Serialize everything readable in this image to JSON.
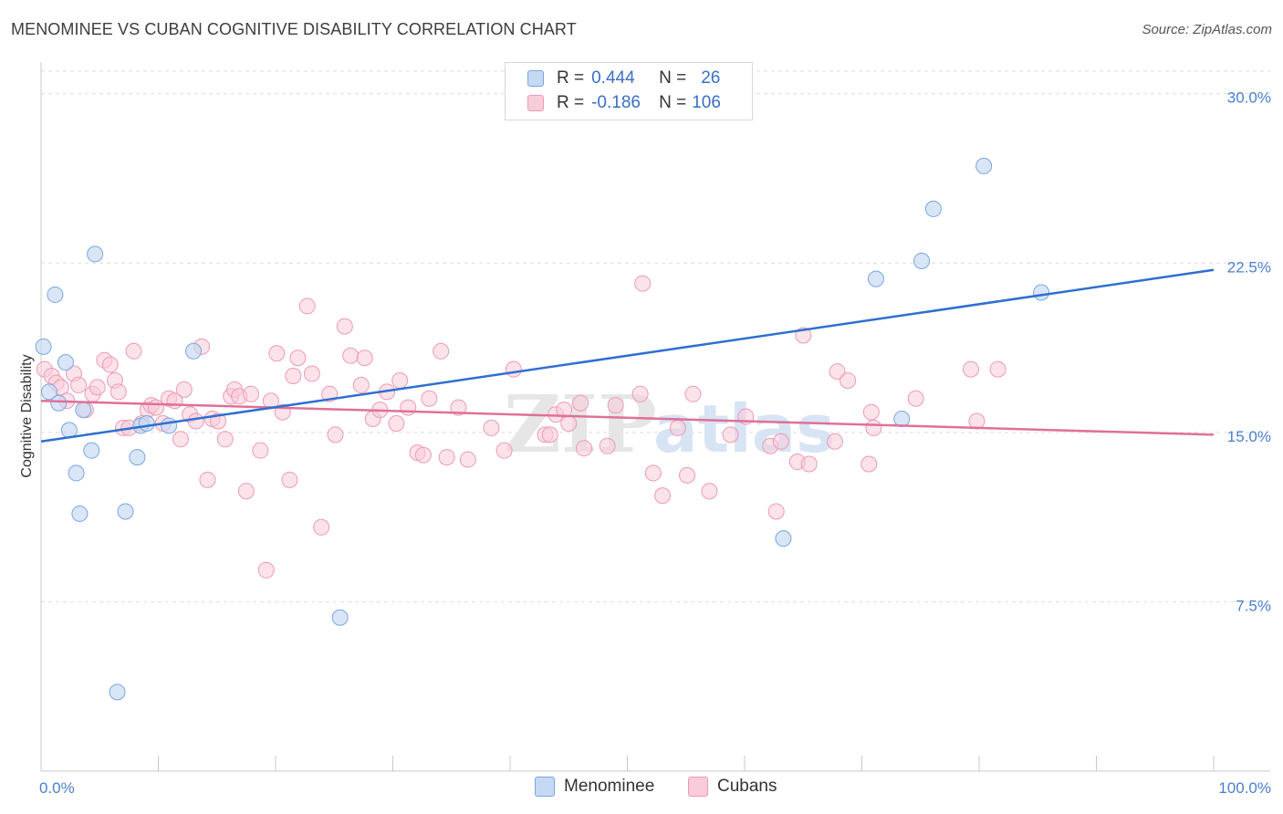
{
  "header": {
    "title": "MENOMINEE VS CUBAN COGNITIVE DISABILITY CORRELATION CHART",
    "source": "Source: ZipAtlas.com"
  },
  "legend_top": {
    "rows": [
      {
        "r_label": "R =",
        "r_value": "0.444",
        "n_label": "N =",
        "n_value": "26"
      },
      {
        "r_label": "R =",
        "r_value": "-0.186",
        "n_label": "N =",
        "n_value": "106"
      }
    ]
  },
  "legend_bottom": {
    "items": [
      "Menominee",
      "Cubans"
    ]
  },
  "watermark": {
    "zip": "ZIP",
    "atlas": "atlas"
  },
  "colors": {
    "menominee_fill": "#c5d9f5",
    "menominee_stroke": "#7aa5e0",
    "menominee_line": "#2f6fd0",
    "cubans_fill": "#f9ccd9",
    "cubans_stroke": "#ec9ab5",
    "cubans_line": "#e07098",
    "tick_label": "#4a7fd0",
    "grid": "#dedede"
  },
  "chart_data": {
    "type": "scatter",
    "title": "MENOMINEE VS CUBAN COGNITIVE DISABILITY CORRELATION CHART",
    "xlabel": "",
    "ylabel": "Cognitive Disability",
    "xlim": [
      0,
      100
    ],
    "ylim": [
      0,
      31
    ],
    "x_tick_labels": [
      "0.0%",
      "100.0%"
    ],
    "y_ticks": [
      7.5,
      15.0,
      22.5,
      30.0
    ],
    "y_tick_labels": [
      "7.5%",
      "15.0%",
      "22.5%",
      "30.0%"
    ],
    "grid": true,
    "legend_position": "bottom-center",
    "series": [
      {
        "name": "Menominee",
        "r": 0.444,
        "n": 26,
        "trend": {
          "x": [
            0,
            100
          ],
          "y": [
            14.6,
            22.2
          ]
        },
        "points": [
          [
            0.2,
            18.8
          ],
          [
            0.7,
            16.8
          ],
          [
            1.2,
            21.1
          ],
          [
            1.5,
            16.3
          ],
          [
            2.1,
            18.1
          ],
          [
            2.4,
            15.1
          ],
          [
            3.0,
            13.2
          ],
          [
            3.3,
            11.4
          ],
          [
            3.6,
            16.0
          ],
          [
            4.3,
            14.2
          ],
          [
            4.6,
            22.9
          ],
          [
            7.2,
            11.5
          ],
          [
            8.2,
            13.9
          ],
          [
            8.5,
            15.3
          ],
          [
            9.0,
            15.4
          ],
          [
            10.9,
            15.3
          ],
          [
            13.0,
            18.6
          ],
          [
            25.5,
            6.8
          ],
          [
            6.5,
            3.5
          ],
          [
            63.3,
            10.3
          ],
          [
            71.2,
            21.8
          ],
          [
            73.4,
            15.6
          ],
          [
            75.1,
            22.6
          ],
          [
            76.1,
            24.9
          ],
          [
            80.4,
            26.8
          ],
          [
            85.3,
            21.2
          ]
        ]
      },
      {
        "name": "Cubans",
        "r": -0.186,
        "n": 106,
        "trend": {
          "x": [
            0,
            100
          ],
          "y": [
            16.4,
            14.9
          ]
        },
        "points": [
          [
            0.3,
            17.8
          ],
          [
            0.9,
            17.5
          ],
          [
            1.3,
            17.2
          ],
          [
            1.7,
            17.0
          ],
          [
            2.2,
            16.4
          ],
          [
            2.8,
            17.6
          ],
          [
            3.2,
            17.1
          ],
          [
            3.8,
            16.0
          ],
          [
            4.4,
            16.7
          ],
          [
            4.8,
            17.0
          ],
          [
            5.4,
            18.2
          ],
          [
            5.9,
            18.0
          ],
          [
            6.3,
            17.3
          ],
          [
            6.6,
            16.8
          ],
          [
            7.0,
            15.2
          ],
          [
            7.5,
            15.2
          ],
          [
            7.9,
            18.6
          ],
          [
            8.6,
            15.4
          ],
          [
            9.1,
            16.0
          ],
          [
            9.4,
            16.2
          ],
          [
            9.8,
            16.1
          ],
          [
            10.4,
            15.4
          ],
          [
            10.9,
            16.5
          ],
          [
            11.4,
            16.4
          ],
          [
            11.9,
            14.7
          ],
          [
            12.2,
            16.9
          ],
          [
            12.7,
            15.8
          ],
          [
            13.2,
            15.5
          ],
          [
            13.7,
            18.8
          ],
          [
            14.2,
            12.9
          ],
          [
            14.6,
            15.6
          ],
          [
            15.1,
            15.5
          ],
          [
            15.7,
            14.7
          ],
          [
            16.2,
            16.6
          ],
          [
            16.5,
            16.9
          ],
          [
            16.9,
            16.6
          ],
          [
            17.5,
            12.4
          ],
          [
            17.9,
            16.7
          ],
          [
            18.7,
            14.2
          ],
          [
            19.2,
            8.9
          ],
          [
            19.6,
            16.4
          ],
          [
            20.1,
            18.5
          ],
          [
            20.6,
            15.9
          ],
          [
            21.2,
            12.9
          ],
          [
            21.5,
            17.5
          ],
          [
            21.9,
            18.3
          ],
          [
            22.7,
            20.6
          ],
          [
            23.1,
            17.6
          ],
          [
            23.9,
            10.8
          ],
          [
            24.6,
            16.7
          ],
          [
            25.1,
            14.9
          ],
          [
            25.9,
            19.7
          ],
          [
            26.4,
            18.4
          ],
          [
            27.3,
            17.1
          ],
          [
            27.6,
            18.3
          ],
          [
            28.3,
            15.6
          ],
          [
            28.9,
            16.0
          ],
          [
            29.5,
            16.8
          ],
          [
            30.3,
            15.4
          ],
          [
            30.6,
            17.3
          ],
          [
            31.3,
            16.1
          ],
          [
            32.1,
            14.1
          ],
          [
            32.6,
            14.0
          ],
          [
            33.1,
            16.5
          ],
          [
            34.1,
            18.6
          ],
          [
            34.6,
            13.9
          ],
          [
            35.6,
            16.1
          ],
          [
            36.4,
            13.8
          ],
          [
            38.4,
            15.2
          ],
          [
            39.5,
            14.2
          ],
          [
            40.3,
            17.8
          ],
          [
            43.0,
            14.9
          ],
          [
            43.4,
            14.9
          ],
          [
            43.9,
            15.8
          ],
          [
            44.6,
            16.0
          ],
          [
            45.0,
            15.4
          ],
          [
            46.0,
            16.3
          ],
          [
            46.3,
            14.3
          ],
          [
            48.3,
            14.4
          ],
          [
            49.0,
            16.2
          ],
          [
            51.1,
            16.7
          ],
          [
            51.3,
            21.6
          ],
          [
            52.2,
            13.2
          ],
          [
            53.0,
            12.2
          ],
          [
            54.3,
            15.2
          ],
          [
            55.1,
            13.1
          ],
          [
            55.6,
            16.7
          ],
          [
            57.0,
            12.4
          ],
          [
            58.8,
            14.9
          ],
          [
            60.1,
            15.7
          ],
          [
            62.2,
            14.4
          ],
          [
            62.7,
            11.5
          ],
          [
            63.1,
            14.6
          ],
          [
            64.5,
            13.7
          ],
          [
            65.0,
            19.3
          ],
          [
            65.5,
            13.6
          ],
          [
            67.7,
            14.6
          ],
          [
            67.9,
            17.7
          ],
          [
            68.8,
            17.3
          ],
          [
            70.6,
            13.6
          ],
          [
            70.8,
            15.9
          ],
          [
            71.0,
            15.2
          ],
          [
            74.6,
            16.5
          ],
          [
            79.3,
            17.8
          ],
          [
            79.8,
            15.5
          ],
          [
            81.6,
            17.8
          ]
        ]
      }
    ]
  }
}
